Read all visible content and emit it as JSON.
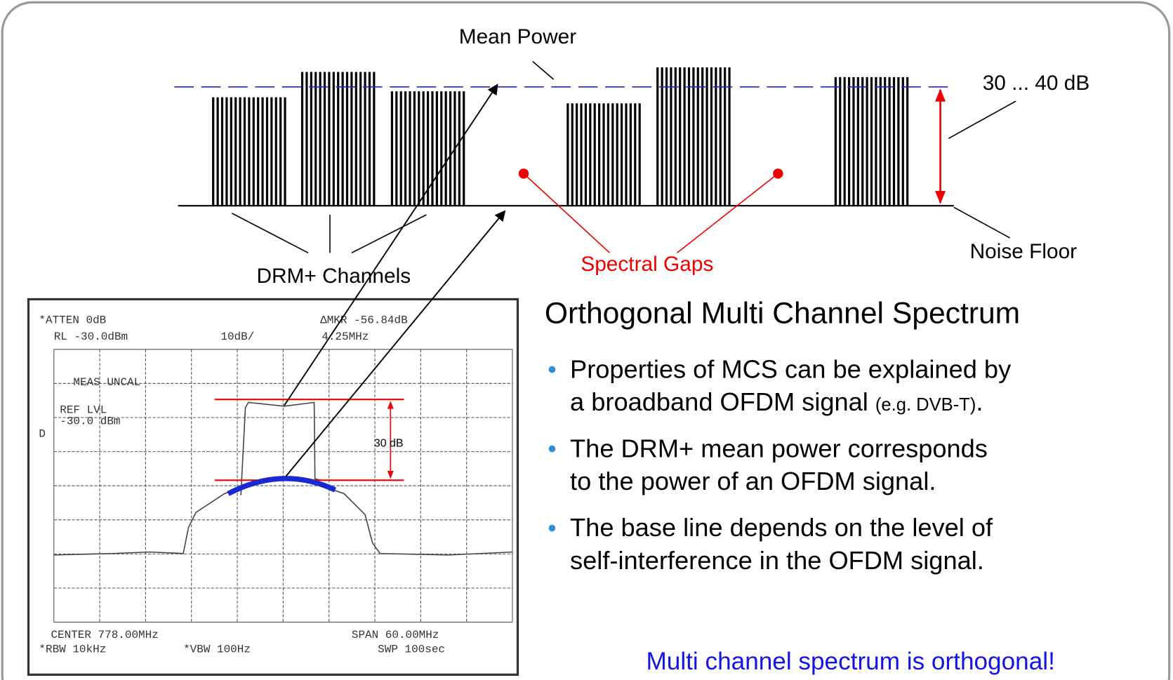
{
  "diagram": {
    "labels": {
      "mean_power": "Mean Power",
      "range": "30 ... 40 dB",
      "noise_floor": "Noise Floor",
      "channels": "DRM+ Channels",
      "gaps": "Spectral Gaps"
    },
    "analyzer": {
      "atten": "*ATTEN 0dB",
      "rl": "RL -30.0dBm",
      "scale": "10dB/",
      "mkr": "ΔMKR -56.84dB",
      "mkr_freq": "4.25MHz",
      "meas": "MEAS UNCAL",
      "ref": "REF LVL",
      "ref_val": "-30.0 dBm",
      "d": "D",
      "delta": "30 dB",
      "center": "CENTER 778.00MHz",
      "span": "SPAN 60.00MHz",
      "rbw": "*RBW 10kHz",
      "vbw": "*VBW 100Hz",
      "swp": "SWP 100sec"
    },
    "title": "Orthogonal Multi Channel Spectrum",
    "bullets": [
      {
        "lines": [
          [
            "Properties of MCS can be explained by"
          ],
          [
            "a broadband OFDM signal ",
            "(e.g. DVB-T)",
            "."
          ]
        ]
      },
      {
        "lines": [
          [
            "The DRM+ mean power corresponds"
          ],
          [
            "to the power of an OFDM signal."
          ]
        ]
      },
      {
        "lines": [
          [
            "The base line depends on the level of"
          ],
          [
            "self-interference in the OFDM signal."
          ]
        ]
      }
    ],
    "conclusion": "Multi channel spectrum is orthogonal!"
  }
}
